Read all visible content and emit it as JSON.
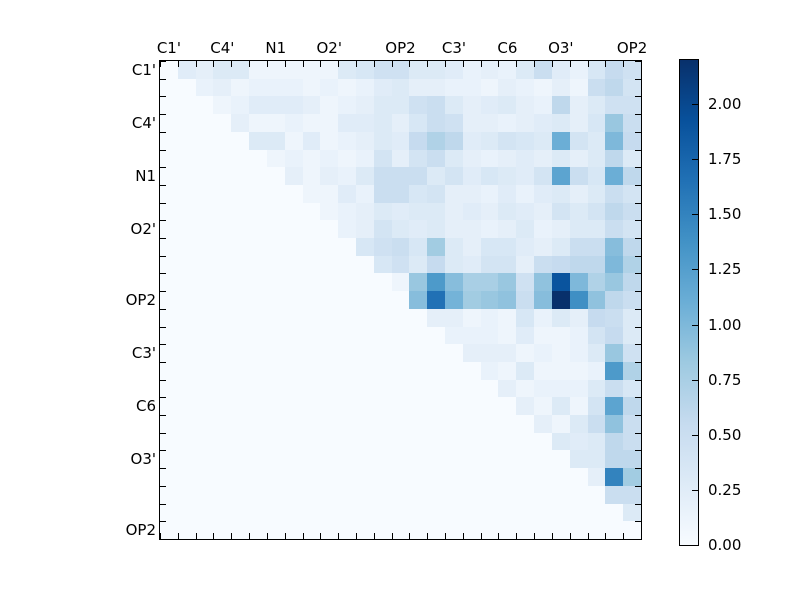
{
  "chart_data": {
    "type": "heatmap",
    "title": "",
    "xlabel": "",
    "ylabel": "",
    "n_cells": 27,
    "axis_atom_labels": [
      "C1'",
      "C4'",
      "N1",
      "O2'",
      "OP2",
      "C3'",
      "C6",
      "O3'",
      "OP2"
    ],
    "label_cell_indices": [
      0,
      3,
      6,
      9,
      13,
      16,
      19,
      22,
      26
    ],
    "colormap": "Blues",
    "colormap_anchors": [
      "#f7fbff",
      "#deebf7",
      "#c6dbef",
      "#9ecae1",
      "#6baed6",
      "#4292c6",
      "#2171b5",
      "#08519c",
      "#08306b"
    ],
    "vmin": 0.0,
    "vmax": 2.2,
    "colorbar_tick_labels": [
      "0.00",
      "0.25",
      "0.50",
      "0.75",
      "1.00",
      "1.25",
      "1.50",
      "1.75",
      "2.00"
    ],
    "colorbar_tick_values": [
      0.0,
      0.25,
      0.5,
      0.75,
      1.0,
      1.25,
      1.5,
      1.75,
      2.0
    ],
    "triangular": "upper",
    "matrix": [
      [
        0,
        0.25,
        0.2,
        0.3,
        0.3,
        0.1,
        0.1,
        0.1,
        0.1,
        0.1,
        0.3,
        0.35,
        0.45,
        0.45,
        0.3,
        0.3,
        0.25,
        0.15,
        0.2,
        0.15,
        0.3,
        0.5,
        0.25,
        0.15,
        0.35,
        0.55,
        0.45
      ],
      [
        0,
        0,
        0.15,
        0.2,
        0.1,
        0.15,
        0.15,
        0.15,
        0.1,
        0.15,
        0.1,
        0.15,
        0.25,
        0.3,
        0.2,
        0.2,
        0.15,
        0.15,
        0.1,
        0.2,
        0.15,
        0.1,
        0.2,
        0.1,
        0.5,
        0.6,
        0.4
      ],
      [
        0,
        0,
        0,
        0.1,
        0.15,
        0.25,
        0.25,
        0.25,
        0.2,
        0.1,
        0.15,
        0.2,
        0.3,
        0.3,
        0.45,
        0.5,
        0.3,
        0.2,
        0.25,
        0.3,
        0.2,
        0.15,
        0.6,
        0.2,
        0.3,
        0.45,
        0.45
      ],
      [
        0,
        0,
        0,
        0,
        0.2,
        0.1,
        0.1,
        0.15,
        0.1,
        0.1,
        0.25,
        0.25,
        0.3,
        0.2,
        0.35,
        0.5,
        0.45,
        0.2,
        0.2,
        0.15,
        0.2,
        0.25,
        0.3,
        0.2,
        0.35,
        0.85,
        0.5
      ],
      [
        0,
        0,
        0,
        0,
        0,
        0.3,
        0.3,
        0.1,
        0.25,
        0.1,
        0.15,
        0.2,
        0.3,
        0.25,
        0.55,
        0.7,
        0.6,
        0.25,
        0.3,
        0.4,
        0.35,
        0.3,
        1.1,
        0.4,
        0.3,
        1.0,
        0.55
      ],
      [
        0,
        0,
        0,
        0,
        0,
        0,
        0.1,
        0.15,
        0.1,
        0.15,
        0.1,
        0.15,
        0.4,
        0.2,
        0.4,
        0.5,
        0.3,
        0.2,
        0.15,
        0.2,
        0.25,
        0.2,
        0.3,
        0.2,
        0.3,
        0.6,
        0.3
      ],
      [
        0,
        0,
        0,
        0,
        0,
        0,
        0,
        0.2,
        0.1,
        0.2,
        0.15,
        0.3,
        0.5,
        0.5,
        0.5,
        0.3,
        0.4,
        0.25,
        0.35,
        0.3,
        0.25,
        0.4,
        1.2,
        0.5,
        0.35,
        1.1,
        0.6
      ],
      [
        0,
        0,
        0,
        0,
        0,
        0,
        0,
        0,
        0.1,
        0.1,
        0.25,
        0.15,
        0.5,
        0.5,
        0.35,
        0.4,
        0.2,
        0.2,
        0.15,
        0.25,
        0.15,
        0.25,
        0.3,
        0.2,
        0.3,
        0.5,
        0.4
      ],
      [
        0,
        0,
        0,
        0,
        0,
        0,
        0,
        0,
        0,
        0.1,
        0.15,
        0.2,
        0.3,
        0.25,
        0.3,
        0.3,
        0.2,
        0.25,
        0.2,
        0.3,
        0.25,
        0.2,
        0.4,
        0.3,
        0.4,
        0.6,
        0.5
      ],
      [
        0,
        0,
        0,
        0,
        0,
        0,
        0,
        0,
        0,
        0,
        0.15,
        0.2,
        0.4,
        0.3,
        0.25,
        0.3,
        0.2,
        0.2,
        0.15,
        0.2,
        0.3,
        0.15,
        0.2,
        0.3,
        0.3,
        0.5,
        0.4
      ],
      [
        0,
        0,
        0,
        0,
        0,
        0,
        0,
        0,
        0,
        0,
        0,
        0.35,
        0.45,
        0.5,
        0.35,
        0.8,
        0.3,
        0.2,
        0.35,
        0.35,
        0.25,
        0.2,
        0.3,
        0.5,
        0.5,
        0.95,
        0.6
      ],
      [
        0,
        0,
        0,
        0,
        0,
        0,
        0,
        0,
        0,
        0,
        0,
        0,
        0.35,
        0.45,
        0.3,
        0.55,
        0.3,
        0.25,
        0.4,
        0.4,
        0.2,
        0.5,
        0.55,
        0.6,
        0.6,
        1.0,
        0.7
      ],
      [
        0,
        0,
        0,
        0,
        0,
        0,
        0,
        0,
        0,
        0,
        0,
        0,
        0,
        0.1,
        0.85,
        1.3,
        0.95,
        0.75,
        0.75,
        0.85,
        0.45,
        0.9,
        1.9,
        1.0,
        0.7,
        0.85,
        0.6
      ],
      [
        0,
        0,
        0,
        0,
        0,
        0,
        0,
        0,
        0,
        0,
        0,
        0,
        0,
        0,
        0.95,
        1.65,
        1.05,
        0.8,
        0.85,
        0.9,
        0.5,
        0.95,
        2.2,
        1.4,
        0.9,
        0.6,
        0.5
      ],
      [
        0,
        0,
        0,
        0,
        0,
        0,
        0,
        0,
        0,
        0,
        0,
        0,
        0,
        0,
        0,
        0.2,
        0.2,
        0.1,
        0.15,
        0.1,
        0.35,
        0.15,
        0.3,
        0.2,
        0.55,
        0.5,
        0.3
      ],
      [
        0,
        0,
        0,
        0,
        0,
        0,
        0,
        0,
        0,
        0,
        0,
        0,
        0,
        0,
        0,
        0,
        0.15,
        0.15,
        0.15,
        0.1,
        0.25,
        0.1,
        0.1,
        0.15,
        0.4,
        0.55,
        0.3
      ],
      [
        0,
        0,
        0,
        0,
        0,
        0,
        0,
        0,
        0,
        0,
        0,
        0,
        0,
        0,
        0,
        0,
        0,
        0.2,
        0.2,
        0.2,
        0.1,
        0.15,
        0.1,
        0.15,
        0.3,
        0.85,
        0.45
      ],
      [
        0,
        0,
        0,
        0,
        0,
        0,
        0,
        0,
        0,
        0,
        0,
        0,
        0,
        0,
        0,
        0,
        0,
        0,
        0.15,
        0.1,
        0.3,
        0.1,
        0.1,
        0.1,
        0.15,
        1.3,
        0.7
      ],
      [
        0,
        0,
        0,
        0,
        0,
        0,
        0,
        0,
        0,
        0,
        0,
        0,
        0,
        0,
        0,
        0,
        0,
        0,
        0,
        0.2,
        0.1,
        0.15,
        0.15,
        0.15,
        0.3,
        0.5,
        0.35
      ],
      [
        0,
        0,
        0,
        0,
        0,
        0,
        0,
        0,
        0,
        0,
        0,
        0,
        0,
        0,
        0,
        0,
        0,
        0,
        0,
        0,
        0.2,
        0.1,
        0.3,
        0.1,
        0.4,
        1.2,
        0.6
      ],
      [
        0,
        0,
        0,
        0,
        0,
        0,
        0,
        0,
        0,
        0,
        0,
        0,
        0,
        0,
        0,
        0,
        0,
        0,
        0,
        0,
        0,
        0.2,
        0.1,
        0.3,
        0.5,
        0.9,
        0.5
      ],
      [
        0,
        0,
        0,
        0,
        0,
        0,
        0,
        0,
        0,
        0,
        0,
        0,
        0,
        0,
        0,
        0,
        0,
        0,
        0,
        0,
        0,
        0,
        0.3,
        0.25,
        0.3,
        0.6,
        0.5
      ],
      [
        0,
        0,
        0,
        0,
        0,
        0,
        0,
        0,
        0,
        0,
        0,
        0,
        0,
        0,
        0,
        0,
        0,
        0,
        0,
        0,
        0,
        0,
        0,
        0.3,
        0.3,
        0.6,
        0.6
      ],
      [
        0,
        0,
        0,
        0,
        0,
        0,
        0,
        0,
        0,
        0,
        0,
        0,
        0,
        0,
        0,
        0,
        0,
        0,
        0,
        0,
        0,
        0,
        0,
        0,
        0.2,
        1.5,
        0.8
      ],
      [
        0,
        0,
        0,
        0,
        0,
        0,
        0,
        0,
        0,
        0,
        0,
        0,
        0,
        0,
        0,
        0,
        0,
        0,
        0,
        0,
        0,
        0,
        0,
        0,
        0,
        0.5,
        0.5
      ],
      [
        0,
        0,
        0,
        0,
        0,
        0,
        0,
        0,
        0,
        0,
        0,
        0,
        0,
        0,
        0,
        0,
        0,
        0,
        0,
        0,
        0,
        0,
        0,
        0,
        0,
        0,
        0.3
      ],
      [
        0,
        0,
        0,
        0,
        0,
        0,
        0,
        0,
        0,
        0,
        0,
        0,
        0,
        0,
        0,
        0,
        0,
        0,
        0,
        0,
        0,
        0,
        0,
        0,
        0,
        0,
        0
      ]
    ]
  }
}
